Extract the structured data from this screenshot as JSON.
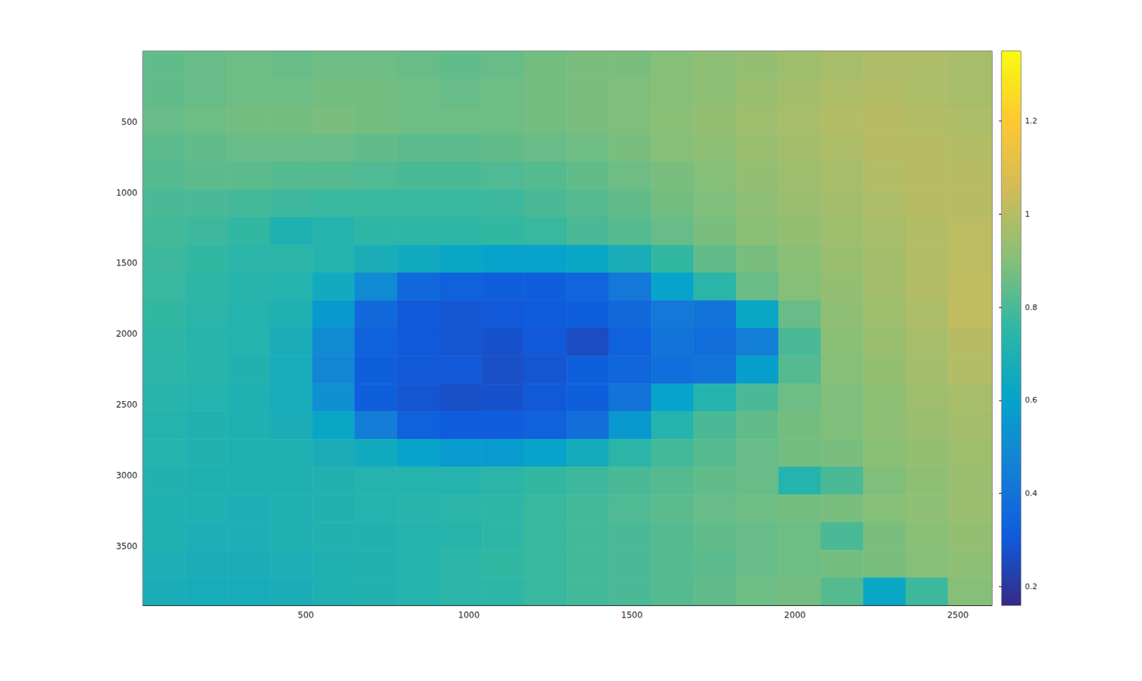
{
  "chart_data": {
    "type": "heatmap",
    "xlim": [
      0.5,
      2604.5
    ],
    "ylim": [
      0.5,
      3918.5
    ],
    "xticks": [
      500,
      1000,
      1500,
      2000,
      2500
    ],
    "yticks": [
      500,
      1000,
      1500,
      2000,
      2500,
      3000,
      3500
    ],
    "clim": [
      0.16,
      1.35
    ],
    "cticks": [
      0.2,
      0.4,
      0.6,
      0.8,
      1,
      1.2
    ],
    "x_edges": [
      0.5,
      130,
      260,
      390,
      520,
      650,
      780,
      910,
      1040,
      1170,
      1300,
      1430,
      1560,
      1690,
      1820,
      1950,
      2080,
      2210,
      2340,
      2470,
      2604.5
    ],
    "y_edges": [
      0.5,
      196,
      392,
      588,
      784,
      980,
      1176,
      1372,
      1568,
      1764,
      1960,
      2156,
      2352,
      2548,
      2744,
      2940,
      3136,
      3332,
      3528,
      3724,
      3918.5
    ],
    "values": [
      [
        0.84,
        0.85,
        0.86,
        0.85,
        0.86,
        0.86,
        0.85,
        0.84,
        0.85,
        0.87,
        0.88,
        0.88,
        0.9,
        0.92,
        0.93,
        0.95,
        0.97,
        0.98,
        0.98,
        0.97
      ],
      [
        0.84,
        0.85,
        0.86,
        0.86,
        0.87,
        0.87,
        0.86,
        0.85,
        0.86,
        0.87,
        0.88,
        0.89,
        0.9,
        0.92,
        0.94,
        0.96,
        0.98,
        0.99,
        0.98,
        0.97
      ],
      [
        0.85,
        0.86,
        0.87,
        0.87,
        0.88,
        0.87,
        0.86,
        0.86,
        0.86,
        0.87,
        0.88,
        0.89,
        0.91,
        0.93,
        0.95,
        0.97,
        0.99,
        1.0,
        0.99,
        0.98
      ],
      [
        0.83,
        0.84,
        0.85,
        0.85,
        0.85,
        0.84,
        0.83,
        0.83,
        0.84,
        0.85,
        0.86,
        0.88,
        0.9,
        0.92,
        0.94,
        0.96,
        0.98,
        1.0,
        1.0,
        0.99
      ],
      [
        0.82,
        0.83,
        0.83,
        0.82,
        0.82,
        0.81,
        0.8,
        0.8,
        0.81,
        0.82,
        0.84,
        0.86,
        0.88,
        0.9,
        0.93,
        0.95,
        0.97,
        0.99,
        1.0,
        1.0
      ],
      [
        0.8,
        0.8,
        0.79,
        0.78,
        0.77,
        0.77,
        0.77,
        0.77,
        0.78,
        0.8,
        0.82,
        0.84,
        0.87,
        0.89,
        0.92,
        0.94,
        0.96,
        0.98,
        1.0,
        1.0
      ],
      [
        0.79,
        0.78,
        0.76,
        0.7,
        0.72,
        0.75,
        0.75,
        0.75,
        0.76,
        0.77,
        0.8,
        0.82,
        0.85,
        0.88,
        0.91,
        0.93,
        0.95,
        0.97,
        0.99,
        1.01
      ],
      [
        0.78,
        0.76,
        0.74,
        0.74,
        0.72,
        0.68,
        0.65,
        0.62,
        0.6,
        0.6,
        0.62,
        0.68,
        0.76,
        0.84,
        0.88,
        0.91,
        0.94,
        0.96,
        0.99,
        1.01
      ],
      [
        0.77,
        0.75,
        0.73,
        0.72,
        0.65,
        0.5,
        0.36,
        0.33,
        0.32,
        0.32,
        0.34,
        0.42,
        0.6,
        0.74,
        0.85,
        0.9,
        0.93,
        0.96,
        0.99,
        1.02
      ],
      [
        0.76,
        0.74,
        0.72,
        0.7,
        0.56,
        0.36,
        0.3,
        0.29,
        0.3,
        0.31,
        0.32,
        0.36,
        0.42,
        0.4,
        0.62,
        0.85,
        0.92,
        0.95,
        0.98,
        1.02
      ],
      [
        0.75,
        0.73,
        0.72,
        0.68,
        0.5,
        0.33,
        0.3,
        0.29,
        0.28,
        0.3,
        0.26,
        0.33,
        0.4,
        0.38,
        0.45,
        0.8,
        0.91,
        0.94,
        0.97,
        1.0
      ],
      [
        0.74,
        0.73,
        0.71,
        0.67,
        0.48,
        0.32,
        0.3,
        0.3,
        0.27,
        0.29,
        0.32,
        0.35,
        0.38,
        0.4,
        0.58,
        0.82,
        0.9,
        0.93,
        0.96,
        0.99
      ],
      [
        0.73,
        0.72,
        0.7,
        0.67,
        0.52,
        0.32,
        0.29,
        0.27,
        0.28,
        0.3,
        0.32,
        0.4,
        0.6,
        0.72,
        0.8,
        0.86,
        0.89,
        0.92,
        0.95,
        0.97
      ],
      [
        0.72,
        0.71,
        0.7,
        0.68,
        0.62,
        0.44,
        0.33,
        0.31,
        0.31,
        0.33,
        0.38,
        0.56,
        0.72,
        0.8,
        0.84,
        0.87,
        0.89,
        0.92,
        0.94,
        0.96
      ],
      [
        0.72,
        0.71,
        0.7,
        0.7,
        0.68,
        0.65,
        0.6,
        0.57,
        0.57,
        0.6,
        0.66,
        0.74,
        0.79,
        0.82,
        0.85,
        0.87,
        0.88,
        0.91,
        0.93,
        0.95
      ],
      [
        0.71,
        0.7,
        0.7,
        0.7,
        0.71,
        0.72,
        0.72,
        0.72,
        0.74,
        0.76,
        0.78,
        0.8,
        0.82,
        0.84,
        0.85,
        0.72,
        0.8,
        0.89,
        0.92,
        0.94
      ],
      [
        0.7,
        0.7,
        0.69,
        0.7,
        0.71,
        0.72,
        0.73,
        0.74,
        0.75,
        0.77,
        0.79,
        0.81,
        0.83,
        0.85,
        0.86,
        0.87,
        0.88,
        0.9,
        0.92,
        0.94
      ],
      [
        0.7,
        0.69,
        0.69,
        0.7,
        0.71,
        0.71,
        0.72,
        0.73,
        0.75,
        0.77,
        0.79,
        0.8,
        0.82,
        0.84,
        0.85,
        0.86,
        0.8,
        0.88,
        0.91,
        0.93
      ],
      [
        0.69,
        0.68,
        0.68,
        0.69,
        0.7,
        0.71,
        0.72,
        0.74,
        0.76,
        0.77,
        0.79,
        0.8,
        0.82,
        0.83,
        0.85,
        0.86,
        0.87,
        0.88,
        0.9,
        0.92
      ],
      [
        0.68,
        0.67,
        0.67,
        0.68,
        0.7,
        0.71,
        0.72,
        0.74,
        0.75,
        0.77,
        0.79,
        0.8,
        0.82,
        0.84,
        0.86,
        0.87,
        0.82,
        0.62,
        0.78,
        0.9
      ]
    ]
  }
}
